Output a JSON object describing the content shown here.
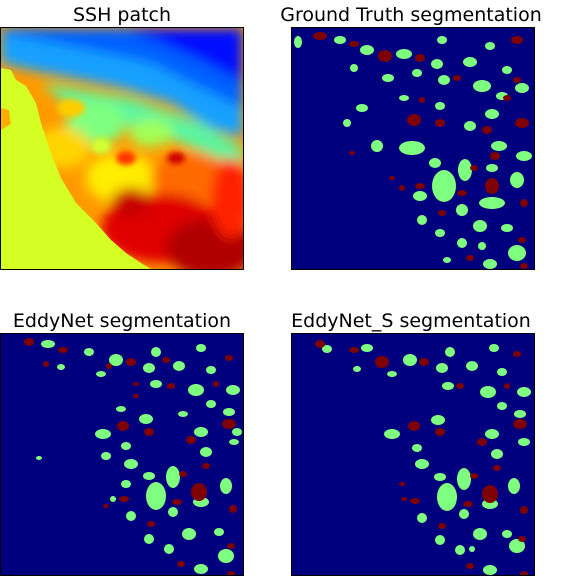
{
  "panels": [
    {
      "title": "SSH patch"
    },
    {
      "title": "Ground Truth segmentation"
    },
    {
      "title": "EddyNet segmentation"
    },
    {
      "title": "EddyNet_S segmentation"
    }
  ],
  "colors": {
    "background": "#00007f",
    "cyclonic": "#7fff7f",
    "anticyclonic": "#7f0000",
    "ssh_low": "#0000ff",
    "ssh_high": "#cc0000",
    "land": "#d5ff24"
  }
}
